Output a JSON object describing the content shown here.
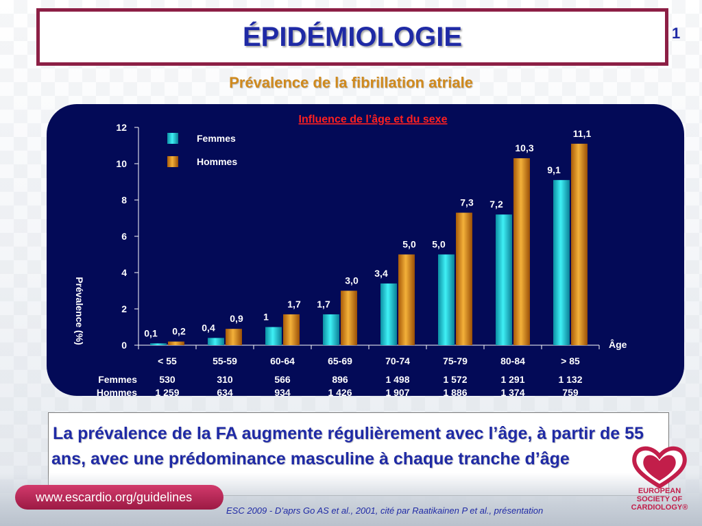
{
  "header": {
    "title": "ÉPIDÉMIOLOGIE",
    "slide_number": "1"
  },
  "subtitle": "Prévalence de la fibrillation atriale",
  "chart_data": {
    "type": "bar",
    "title": "Influence de l’âge et du sexe",
    "xlabel": "Âge",
    "ylabel": "Prévalence (%)",
    "ylim": [
      0,
      12
    ],
    "yticks": [
      "0",
      "2",
      "4",
      "6",
      "8",
      "10",
      "12"
    ],
    "categories": [
      "< 55",
      "55-59",
      "60-64",
      "65-69",
      "70-74",
      "75-79",
      "80-84",
      "> 85"
    ],
    "legend_placement": "top-left",
    "series": [
      {
        "name": "Femmes",
        "color": "#1fd3dc",
        "values": [
          0.1,
          0.4,
          1,
          1.7,
          3.4,
          5.0,
          7.2,
          9.1
        ],
        "labels": [
          "0,1",
          "0,4",
          "1",
          "1,7",
          "3,4",
          "5,0",
          "7,2",
          "9,1"
        ]
      },
      {
        "name": "Hommes",
        "color": "#e79a1e",
        "values": [
          0.2,
          0.9,
          1.7,
          3.0,
          5.0,
          7.3,
          10.3,
          11.1
        ],
        "labels": [
          "0,2",
          "0,9",
          "1,7",
          "3,0",
          "5,0",
          "7,3",
          "10,3",
          "11,1"
        ]
      }
    ],
    "counts": {
      "row_labels": [
        "Femmes",
        "Hommes"
      ],
      "femmes": [
        "530",
        "310",
        "566",
        "896",
        "1 498",
        "1 572",
        "1 291",
        "1 132"
      ],
      "hommes": [
        "1 259",
        "634",
        "934",
        "1 426",
        "1 907",
        "1 886",
        "1 374",
        "759"
      ]
    }
  },
  "conclusion": {
    "bullet": "",
    "text": "La prévalence de la FA augmente régulièrement avec l’âge, à partir de 55 ans, avec une prédominance masculine à chaque tranche d’âge"
  },
  "footer": {
    "url": "www.escardio.org/guidelines",
    "source": "ESC 2009 - D’aprs Go AS et al., 2001, cité par Raatikainen  P et al., présentation"
  },
  "logo": {
    "line1": "EUROPEAN",
    "line2": "SOCIETY OF",
    "line3": "CARDIOLOGY®"
  },
  "colors": {
    "title": "#1f2aa5",
    "title_border": "#8c1f45",
    "subtitle": "#d08a1e",
    "panel": "#030a57",
    "chart_title": "#ff2020",
    "brand": "#c21e4a"
  }
}
